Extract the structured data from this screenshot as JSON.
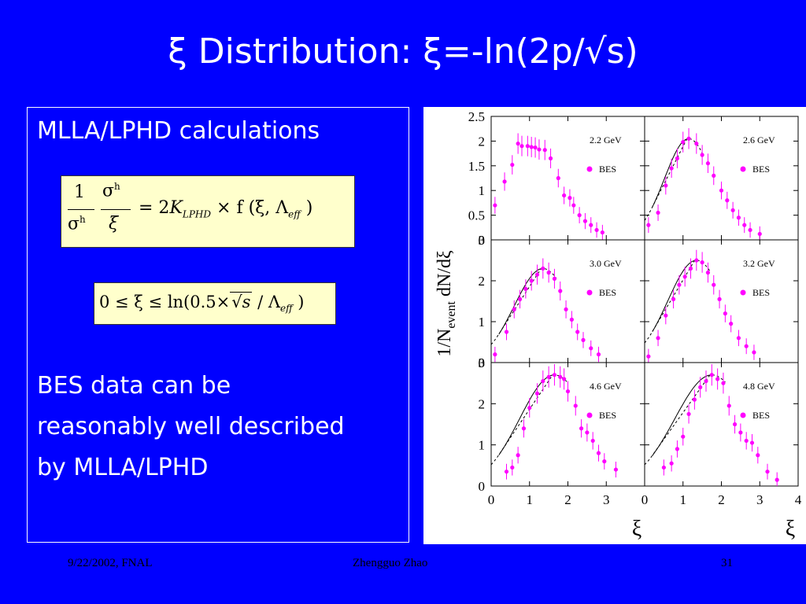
{
  "slide": {
    "title": "ξ Distribution: ξ=-ln(2p/√s)",
    "heading": "MLLA/LPHD calculations",
    "body_lines": [
      "BES data can be",
      "reasonably well described",
      "by MLLA/LPHD"
    ],
    "footer_left": "9/22/2002, FNAL",
    "footer_center": "Zhengguo Zhao",
    "footer_right": "31"
  },
  "equations": {
    "eq1_lhs_num": "1",
    "eq1_lhs_den": "σ",
    "eq1_lhs_den_sup": "h",
    "eq1_frac2_num": "σ",
    "eq1_frac2_num_sup": "h",
    "eq1_frac2_den": "ξ",
    "eq1_rhs": "= 2",
    "eq1_K": "K",
    "eq1_K_sub": "LPHD",
    "eq1_f": "× f (ξ, Λ",
    "eq1_eff": "eff",
    "eq1_close": ")",
    "eq2_a": "0 ≤ ξ ≤ ln(0.5×",
    "eq2_s": "s",
    "eq2_b": " / Λ",
    "eq2_eff": "eff",
    "eq2_close": " )"
  },
  "colors": {
    "background": "#0000ff",
    "data": "#ff00ff",
    "eqbox": "#ffffcc"
  },
  "chart_data": {
    "type": "scatter",
    "ylabel": "1/N_event dN/dξ",
    "xlabel": "ξ",
    "panels": [
      {
        "energy": "2.2 GeV",
        "legend": "BES",
        "ylim": [
          0,
          2.5
        ],
        "yticks": [
          "0",
          "0.5",
          "1",
          "1.5",
          "2",
          "2.5"
        ],
        "curve": false,
        "x": [
          0.1,
          0.35,
          0.55,
          0.7,
          0.8,
          0.95,
          1.05,
          1.15,
          1.25,
          1.4,
          1.55,
          1.75,
          1.9,
          2.05,
          2.15,
          2.3,
          2.45,
          2.6,
          2.75,
          2.9
        ],
        "y": [
          0.7,
          1.18,
          1.52,
          1.95,
          1.9,
          1.9,
          1.88,
          1.87,
          1.83,
          1.82,
          1.65,
          1.25,
          0.9,
          0.85,
          0.7,
          0.5,
          0.38,
          0.3,
          0.2,
          0.15
        ]
      },
      {
        "energy": "2.6 GeV",
        "legend": "BES",
        "ylim": [
          0,
          2.5
        ],
        "yticks": [],
        "curve": true,
        "x": [
          0.1,
          0.35,
          0.55,
          0.7,
          0.85,
          1.0,
          1.15,
          1.35,
          1.5,
          1.65,
          1.8,
          2.0,
          2.15,
          2.3,
          2.45,
          2.6,
          2.75,
          3.0
        ],
        "y": [
          0.3,
          0.55,
          1.1,
          1.45,
          1.65,
          1.98,
          2.05,
          1.95,
          1.72,
          1.55,
          1.3,
          1.0,
          0.8,
          0.6,
          0.45,
          0.3,
          0.2,
          0.12
        ]
      },
      {
        "energy": "3.0 GeV",
        "legend": "BES",
        "ylim": [
          0,
          3
        ],
        "yticks": [
          "0",
          "1",
          "2",
          "3"
        ],
        "curve": true,
        "x": [
          0.1,
          0.4,
          0.6,
          0.75,
          0.9,
          1.05,
          1.2,
          1.35,
          1.5,
          1.65,
          1.8,
          1.95,
          2.1,
          2.25,
          2.4,
          2.6,
          2.8
        ],
        "y": [
          0.2,
          0.75,
          1.3,
          1.55,
          1.8,
          2.0,
          2.15,
          2.3,
          2.2,
          2.05,
          1.75,
          1.3,
          1.05,
          0.75,
          0.55,
          0.35,
          0.2
        ]
      },
      {
        "energy": "3.2 GeV",
        "legend": "BES",
        "ylim": [
          0,
          3
        ],
        "yticks": [],
        "curve": true,
        "x": [
          0.1,
          0.35,
          0.55,
          0.75,
          0.9,
          1.05,
          1.2,
          1.35,
          1.5,
          1.65,
          1.8,
          1.95,
          2.1,
          2.25,
          2.45,
          2.65,
          2.85
        ],
        "y": [
          0.15,
          0.6,
          1.15,
          1.55,
          1.9,
          2.1,
          2.3,
          2.5,
          2.45,
          2.2,
          1.9,
          1.55,
          1.2,
          0.95,
          0.6,
          0.4,
          0.25
        ]
      },
      {
        "energy": "4.6 GeV",
        "legend": "BES",
        "ylim": [
          0,
          3
        ],
        "yticks": [
          "0",
          "1",
          "2",
          "3"
        ],
        "curve": true,
        "x": [
          0.4,
          0.55,
          0.7,
          0.85,
          1.0,
          1.2,
          1.35,
          1.5,
          1.65,
          1.8,
          1.9,
          2.0,
          2.2,
          2.35,
          2.5,
          2.65,
          2.8,
          2.95,
          3.25
        ],
        "y": [
          0.35,
          0.45,
          0.75,
          1.4,
          1.9,
          2.25,
          2.55,
          2.65,
          2.7,
          2.65,
          2.6,
          2.3,
          1.95,
          1.4,
          1.3,
          1.1,
          0.8,
          0.6,
          0.4
        ]
      },
      {
        "energy": "4.8 GeV",
        "legend": "BES",
        "ylim": [
          0,
          3
        ],
        "yticks": [],
        "curve": true,
        "x": [
          0.5,
          0.7,
          0.85,
          1.0,
          1.15,
          1.3,
          1.45,
          1.6,
          1.75,
          1.9,
          2.05,
          2.2,
          2.35,
          2.5,
          2.65,
          2.8,
          2.95,
          3.2,
          3.45
        ],
        "y": [
          0.45,
          0.55,
          0.9,
          1.2,
          1.75,
          2.1,
          2.4,
          2.55,
          2.7,
          2.6,
          2.5,
          1.95,
          1.5,
          1.3,
          1.1,
          1.05,
          0.75,
          0.35,
          0.15
        ]
      }
    ],
    "xticks_left": [
      "0",
      "1",
      "2",
      "3"
    ],
    "xticks_right": [
      "0",
      "1",
      "2",
      "3",
      "4"
    ]
  }
}
